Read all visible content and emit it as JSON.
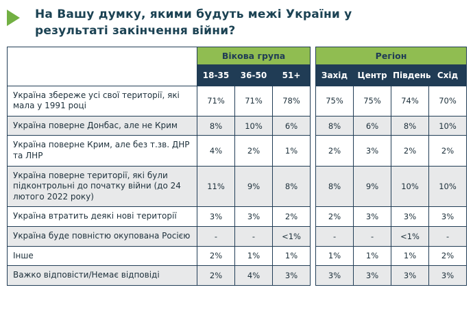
{
  "title": "На Вашу думку, якими будуть межі України у результаті закінчення війни?",
  "colors": {
    "accent_green": "#90bd51",
    "arrow_green": "#72b043",
    "header_navy": "#203c55",
    "title_text": "#1b4253",
    "zebra_gray": "#e8e9ea",
    "border": "#203c55"
  },
  "chart_data": {
    "type": "table",
    "title": "На Вашу думку, якими будуть межі України у результаті закінчення війни?",
    "column_groups": [
      {
        "label": "Вікова група",
        "span": 3
      },
      {
        "label": "Регіон",
        "span": 4
      }
    ],
    "columns": [
      "18-35",
      "36-50",
      "51+",
      "Захід",
      "Центр",
      "Південь",
      "Схід"
    ],
    "rows": [
      {
        "label": "Україна збереже усі свої території, які мала у 1991 році",
        "values": [
          "71%",
          "71%",
          "78%",
          "75%",
          "75%",
          "74%",
          "70%"
        ]
      },
      {
        "label": "Україна поверне Донбас, але не Крим",
        "values": [
          "8%",
          "10%",
          "6%",
          "8%",
          "6%",
          "8%",
          "10%"
        ]
      },
      {
        "label": "Україна поверне Крим, але без т.зв. ДНР та ЛНР",
        "values": [
          "4%",
          "2%",
          "1%",
          "2%",
          "3%",
          "2%",
          "2%"
        ]
      },
      {
        "label": "Україна поверне території, які були підконтрольні до початку війни (до 24 лютого 2022 року)",
        "values": [
          "11%",
          "9%",
          "8%",
          "8%",
          "9%",
          "10%",
          "10%"
        ]
      },
      {
        "label": "Україна втратить деякі нові території",
        "values": [
          "3%",
          "3%",
          "2%",
          "2%",
          "3%",
          "3%",
          "3%"
        ]
      },
      {
        "label": "Україна буде повністю окупована Росією",
        "values": [
          "-",
          "-",
          "<1%",
          "-",
          "-",
          "<1%",
          "-"
        ]
      },
      {
        "label": "Інше",
        "values": [
          "2%",
          "1%",
          "1%",
          "1%",
          "1%",
          "1%",
          "2%"
        ]
      },
      {
        "label": "Важко відповісти/Немає відповіді",
        "values": [
          "2%",
          "4%",
          "3%",
          "3%",
          "3%",
          "3%",
          "3%"
        ]
      }
    ]
  }
}
